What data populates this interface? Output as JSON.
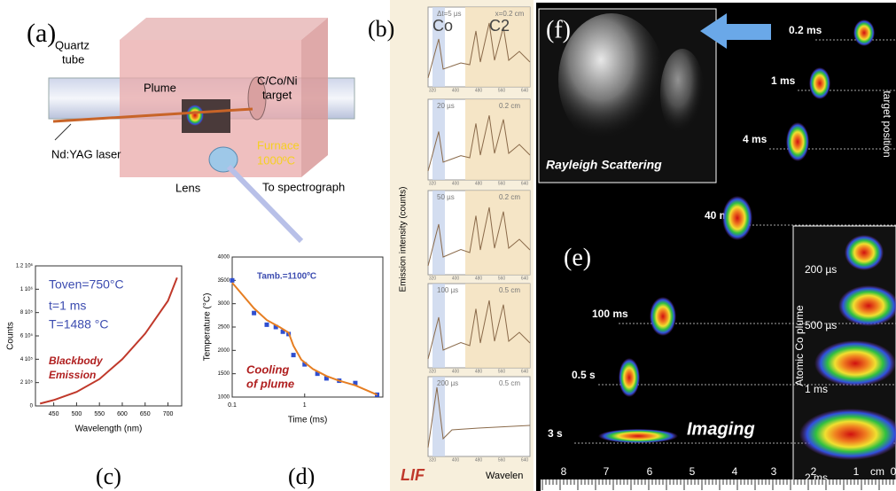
{
  "panel_a": {
    "label": "(a)",
    "quartz_tube": [
      "Quartz",
      "tube"
    ],
    "plume": "Plume",
    "target": [
      "C/Co/Ni",
      "target"
    ],
    "laser": "Nd:YAG laser",
    "furnace": [
      "Furnace",
      "1000ºC"
    ],
    "lens": "Lens",
    "spectrograph": "To spectrograph"
  },
  "panel_b": {
    "label": "(b)",
    "co": "Co",
    "c2": "C2",
    "y_label": "Emission intensity (counts)",
    "lif": "LIF",
    "x_label": "Wavelen",
    "x_ticks": [
      "320",
      "400",
      "480",
      "560",
      "640"
    ],
    "spectra": [
      {
        "time": "Δt=5 µs",
        "position": "x=0.2 cm"
      },
      {
        "time": "20 µs",
        "position": "0.2 cm"
      },
      {
        "time": "50 µs",
        "position": "0.2 cm"
      },
      {
        "time": "100 µs",
        "position": "0.5 cm"
      },
      {
        "time": "200 µs",
        "position": "0.5 cm"
      }
    ]
  },
  "panel_c": {
    "label": "(c)",
    "type": "line",
    "annotation": [
      "Toven=750°C",
      "t=1 ms",
      "T=1488 °C"
    ],
    "note": [
      "Blackbody",
      "Emission"
    ],
    "x_label": "Wavelength (nm)",
    "y_label": "Counts",
    "color": "#c0392b",
    "x": [
      420,
      450,
      500,
      550,
      600,
      650,
      700,
      720
    ],
    "values": [
      20000,
      50000,
      120000,
      230000,
      400000,
      620000,
      900000,
      1100000
    ],
    "xlim": [
      410,
      730
    ],
    "xticks": [
      450,
      500,
      550,
      600,
      650,
      700
    ],
    "ylim": [
      0,
      1200000
    ],
    "yticks": [
      0,
      {
        "value": 200000,
        "label": "2 10⁵"
      },
      {
        "value": 400000,
        "label": "4 10⁵"
      },
      {
        "value": 600000,
        "label": "6 10⁵"
      },
      {
        "value": 800000,
        "label": "8 10⁵"
      },
      {
        "value": 1000000,
        "label": "1 10⁶"
      },
      {
        "value": 1200000,
        "label": "1.2 10⁶"
      }
    ]
  },
  "panel_d": {
    "label": "(d)",
    "type": "scatter",
    "annotation": "Tamb.=1100ºC",
    "note": [
      "Cooling",
      "of plume"
    ],
    "x_label": "Time (ms)",
    "y_label": "Temperature (°C)",
    "log_x": true,
    "series": [
      {
        "name": "measured",
        "color": "#2f4fd0",
        "x": [
          0.1,
          0.2,
          0.3,
          0.4,
          0.5,
          0.6,
          0.7,
          1,
          1.5,
          2,
          3,
          5,
          10
        ],
        "values": [
          3500,
          2800,
          2550,
          2500,
          2400,
          2350,
          1900,
          1700,
          1500,
          1400,
          1350,
          1300,
          1050
        ]
      },
      {
        "name": "fit",
        "color": "#e67e22",
        "x": [
          0.1,
          0.2,
          0.3,
          0.45,
          0.6,
          0.7,
          0.9,
          1.3,
          2,
          3,
          5,
          10
        ],
        "values": [
          3450,
          2900,
          2650,
          2500,
          2380,
          2100,
          1800,
          1600,
          1450,
          1350,
          1250,
          1050
        ]
      }
    ],
    "xlim": [
      0.1,
      12
    ],
    "xticks": [
      {
        "value": 0.1,
        "label": "0.1"
      },
      1
    ],
    "ylim": [
      1000,
      4000
    ],
    "yticks": [
      1000,
      1500,
      2000,
      2500,
      3000,
      3500,
      4000
    ]
  },
  "panel_f": {
    "label": "(f)",
    "caption": "Rayleigh Scattering"
  },
  "panel_e": {
    "label": "(e)",
    "caption": "Imaging",
    "axis_label": "target position",
    "times": [
      "0.2 ms",
      "1 ms",
      "4 ms",
      "40 ms",
      "100 ms",
      "0.5 s",
      "3 s"
    ],
    "inset_label": "Atomic Co plume",
    "inset_times": [
      "200 µs",
      "500 µs",
      "1 ms",
      "2 ms"
    ],
    "ruler": [
      "8",
      "7",
      "6",
      "5",
      "4",
      "3",
      "2",
      "1",
      "cm",
      "0"
    ]
  }
}
